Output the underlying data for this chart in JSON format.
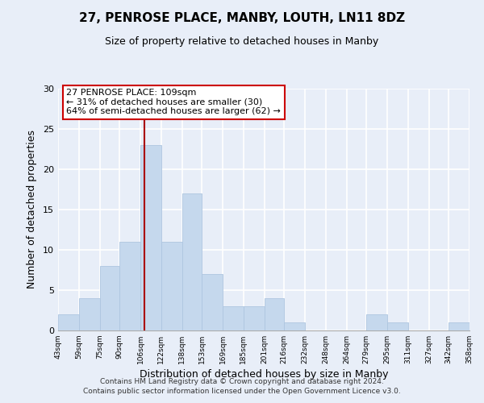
{
  "title1": "27, PENROSE PLACE, MANBY, LOUTH, LN11 8DZ",
  "title2": "Size of property relative to detached houses in Manby",
  "xlabel": "Distribution of detached houses by size in Manby",
  "ylabel": "Number of detached properties",
  "bin_edges": [
    43,
    59,
    75,
    90,
    106,
    122,
    138,
    153,
    169,
    185,
    201,
    216,
    232,
    248,
    264,
    279,
    295,
    311,
    327,
    342,
    358
  ],
  "counts": [
    2,
    4,
    8,
    11,
    23,
    11,
    17,
    7,
    3,
    3,
    4,
    1,
    0,
    0,
    0,
    2,
    1,
    0,
    0,
    1
  ],
  "property_line_x": 109,
  "bar_color": "#c5d8ed",
  "bar_edge_color": "#aec6e0",
  "property_line_color": "#aa0000",
  "annotation_box_edge_color": "#cc0000",
  "annotation_text_line1": "27 PENROSE PLACE: 109sqm",
  "annotation_text_line2": "← 31% of detached houses are smaller (30)",
  "annotation_text_line3": "64% of semi-detached houses are larger (62) →",
  "ylim": [
    0,
    30
  ],
  "yticks": [
    0,
    5,
    10,
    15,
    20,
    25,
    30
  ],
  "footer1": "Contains HM Land Registry data © Crown copyright and database right 2024.",
  "footer2": "Contains public sector information licensed under the Open Government Licence v3.0.",
  "bg_color": "#e8eef8",
  "plot_bg_color": "#e8eef8",
  "grid_color": "#ffffff"
}
